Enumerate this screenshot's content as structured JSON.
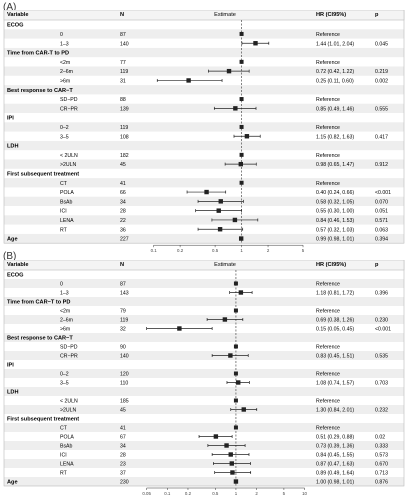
{
  "chart_data": [
    {
      "type": "forest",
      "panel": "(A)",
      "headers": {
        "variable": "Variable",
        "n": "N",
        "estimate": "Estimate",
        "hr": "HR (CI95%)",
        "p": "p"
      },
      "axis": {
        "scale": "log",
        "ticks": [
          0.1,
          0.2,
          0.5,
          1,
          2,
          5
        ],
        "tick_labels": [
          "0.1",
          "0.2",
          "0.5",
          "1",
          "2",
          "5"
        ],
        "range": [
          0.07,
          6
        ],
        "reference_line": 1
      },
      "rows": [
        {
          "type": "group",
          "label": "ECOG"
        },
        {
          "type": "item",
          "label": "0",
          "n": "87",
          "hr": null,
          "lo": null,
          "hi": null,
          "text": "Reference",
          "p": ""
        },
        {
          "type": "item",
          "label": "1–3",
          "n": "140",
          "hr": 1.44,
          "lo": 1.01,
          "hi": 2.04,
          "text": "1.44 (1.01, 2.04)",
          "p": "0.045"
        },
        {
          "type": "group",
          "label": "Time from CAR-T to PD"
        },
        {
          "type": "item",
          "label": "<2m",
          "n": "77",
          "hr": null,
          "lo": null,
          "hi": null,
          "text": "Reference",
          "p": ""
        },
        {
          "type": "item",
          "label": "2–6m",
          "n": "119",
          "hr": 0.72,
          "lo": 0.42,
          "hi": 1.22,
          "text": "0.72 (0.42, 1.22)",
          "p": "0.219"
        },
        {
          "type": "item",
          "label": ">6m",
          "n": "31",
          "hr": 0.25,
          "lo": 0.11,
          "hi": 0.6,
          "text": "0.25 (0.11, 0.60)",
          "p": "0.002"
        },
        {
          "type": "group",
          "label": "Best response to CAR−T"
        },
        {
          "type": "item",
          "label": "SD−PD",
          "n": "88",
          "hr": null,
          "lo": null,
          "hi": null,
          "text": "Reference",
          "p": ""
        },
        {
          "type": "item",
          "label": "CR−PR",
          "n": "139",
          "hr": 0.85,
          "lo": 0.49,
          "hi": 1.46,
          "text": "0.85 (0.49, 1.46)",
          "p": "0.555"
        },
        {
          "type": "group",
          "label": "IPI"
        },
        {
          "type": "item",
          "label": "0–2",
          "n": "119",
          "hr": null,
          "lo": null,
          "hi": null,
          "text": "Reference",
          "p": ""
        },
        {
          "type": "item",
          "label": "3–5",
          "n": "108",
          "hr": 1.15,
          "lo": 0.82,
          "hi": 1.63,
          "text": "1.15 (0.82, 1.63)",
          "p": "0.417"
        },
        {
          "type": "group",
          "label": "LDH"
        },
        {
          "type": "item",
          "label": "< 2ULN",
          "n": "182",
          "hr": null,
          "lo": null,
          "hi": null,
          "text": "Reference",
          "p": ""
        },
        {
          "type": "item",
          "label": ">2ULN",
          "n": "45",
          "hr": 0.98,
          "lo": 0.65,
          "hi": 1.47,
          "text": "0.98 (0.65, 1.47)",
          "p": "0.912"
        },
        {
          "type": "group",
          "label": "First subsequent treatment"
        },
        {
          "type": "item",
          "label": "CT",
          "n": "41",
          "hr": null,
          "lo": null,
          "hi": null,
          "text": "Reference",
          "p": ""
        },
        {
          "type": "item",
          "label": "POLA",
          "n": "66",
          "hr": 0.4,
          "lo": 0.24,
          "hi": 0.66,
          "text": "0.40 (0.24, 0.66)",
          "p": "<0.001"
        },
        {
          "type": "item",
          "label": "BsAb",
          "n": "34",
          "hr": 0.58,
          "lo": 0.32,
          "hi": 1.05,
          "text": "0.58 (0.32, 1.05)",
          "p": "0.070"
        },
        {
          "type": "item",
          "label": "ICI",
          "n": "28",
          "hr": 0.55,
          "lo": 0.3,
          "hi": 1.0,
          "text": "0.55 (0.30, 1.00)",
          "p": "0.051"
        },
        {
          "type": "item",
          "label": "LENA",
          "n": "22",
          "hr": 0.84,
          "lo": 0.46,
          "hi": 1.53,
          "text": "0.84 (0.46, 1.53)",
          "p": "0.571"
        },
        {
          "type": "item",
          "label": "RT",
          "n": "36",
          "hr": 0.57,
          "lo": 0.32,
          "hi": 1.03,
          "text": "0.57 (0.32, 1.03)",
          "p": "0.063"
        },
        {
          "type": "groupitem",
          "label": "Age",
          "n": "227",
          "hr": 0.99,
          "lo": 0.98,
          "hi": 1.01,
          "text": "0.99 (0.98, 1.01)",
          "p": "0.394"
        }
      ]
    },
    {
      "type": "forest",
      "panel": "(B)",
      "headers": {
        "variable": "Variable",
        "n": "N",
        "estimate": "Estimate",
        "hr": "HR (CI95%)",
        "p": "p"
      },
      "axis": {
        "scale": "log",
        "ticks": [
          0.05,
          0.1,
          0.2,
          0.5,
          1,
          2,
          5,
          10
        ],
        "tick_labels": [
          "0.05",
          "0.1",
          "0.2",
          "0.5",
          "1",
          "2",
          "5",
          "10"
        ],
        "range": [
          0.04,
          12
        ],
        "reference_line": 1
      },
      "rows": [
        {
          "type": "group",
          "label": "ECOG"
        },
        {
          "type": "item",
          "label": "0",
          "n": "87",
          "hr": null,
          "lo": null,
          "hi": null,
          "text": "Reference",
          "p": ""
        },
        {
          "type": "item",
          "label": "1–3",
          "n": "143",
          "hr": 1.18,
          "lo": 0.81,
          "hi": 1.72,
          "text": "1.18 (0.81, 1.72)",
          "p": "0.396"
        },
        {
          "type": "group",
          "label": "Time from CAR−T to PD"
        },
        {
          "type": "item",
          "label": "<2m",
          "n": "79",
          "hr": null,
          "lo": null,
          "hi": null,
          "text": "Reference",
          "p": ""
        },
        {
          "type": "item",
          "label": "2–6m",
          "n": "119",
          "hr": 0.69,
          "lo": 0.38,
          "hi": 1.26,
          "text": "0.69 (0.38, 1.26)",
          "p": "0.230"
        },
        {
          "type": "item",
          "label": ">6m",
          "n": "32",
          "hr": 0.15,
          "lo": 0.05,
          "hi": 0.45,
          "text": "0.15 (0.05, 0.45)",
          "p": "<0.001"
        },
        {
          "type": "group",
          "label": "Best response to CAR−T"
        },
        {
          "type": "item",
          "label": "SD−PD",
          "n": "90",
          "hr": null,
          "lo": null,
          "hi": null,
          "text": "Reference",
          "p": ""
        },
        {
          "type": "item",
          "label": "CR−PR",
          "n": "140",
          "hr": 0.83,
          "lo": 0.45,
          "hi": 1.51,
          "text": "0.83 (0.45, 1.51)",
          "p": "0.535"
        },
        {
          "type": "group",
          "label": "IPI"
        },
        {
          "type": "item",
          "label": "0–2",
          "n": "120",
          "hr": null,
          "lo": null,
          "hi": null,
          "text": "Reference",
          "p": ""
        },
        {
          "type": "item",
          "label": "3–5",
          "n": "110",
          "hr": 1.08,
          "lo": 0.74,
          "hi": 1.57,
          "text": "1.08 (0.74, 1.57)",
          "p": "0.703"
        },
        {
          "type": "group",
          "label": "LDH"
        },
        {
          "type": "item",
          "label": "< 2ULN",
          "n": "185",
          "hr": null,
          "lo": null,
          "hi": null,
          "text": "Reference",
          "p": ""
        },
        {
          "type": "item",
          "label": ">2ULN",
          "n": "45",
          "hr": 1.3,
          "lo": 0.84,
          "hi": 2.01,
          "text": "1.30 (0.84, 2.01)",
          "p": "0.232"
        },
        {
          "type": "group",
          "label": "First subsequent treatment"
        },
        {
          "type": "item",
          "label": "CT",
          "n": "41",
          "hr": null,
          "lo": null,
          "hi": null,
          "text": "Reference",
          "p": ""
        },
        {
          "type": "item",
          "label": "POLA",
          "n": "67",
          "hr": 0.51,
          "lo": 0.29,
          "hi": 0.88,
          "text": "0.51 (0.29, 0.88)",
          "p": "0.02"
        },
        {
          "type": "item",
          "label": "BsAb",
          "n": "34",
          "hr": 0.73,
          "lo": 0.39,
          "hi": 1.36,
          "text": "0.73 (0.39, 1.36)",
          "p": "0.333"
        },
        {
          "type": "item",
          "label": "ICI",
          "n": "28",
          "hr": 0.84,
          "lo": 0.45,
          "hi": 1.55,
          "text": "0.84 (0.45, 1.55)",
          "p": "0.573"
        },
        {
          "type": "item",
          "label": "LENA",
          "n": "23",
          "hr": 0.87,
          "lo": 0.47,
          "hi": 1.63,
          "text": "0.87 (0.47, 1.63)",
          "p": "0.670"
        },
        {
          "type": "item",
          "label": "RT",
          "n": "37",
          "hr": 0.89,
          "lo": 0.49,
          "hi": 1.64,
          "text": "0.89 (0.49, 1.64)",
          "p": "0.713"
        },
        {
          "type": "groupitem",
          "label": "Age",
          "n": "230",
          "hr": 1.0,
          "lo": 0.98,
          "hi": 1.01,
          "text": "1.00 (0.98, 1.01)",
          "p": "0.876"
        }
      ]
    }
  ]
}
